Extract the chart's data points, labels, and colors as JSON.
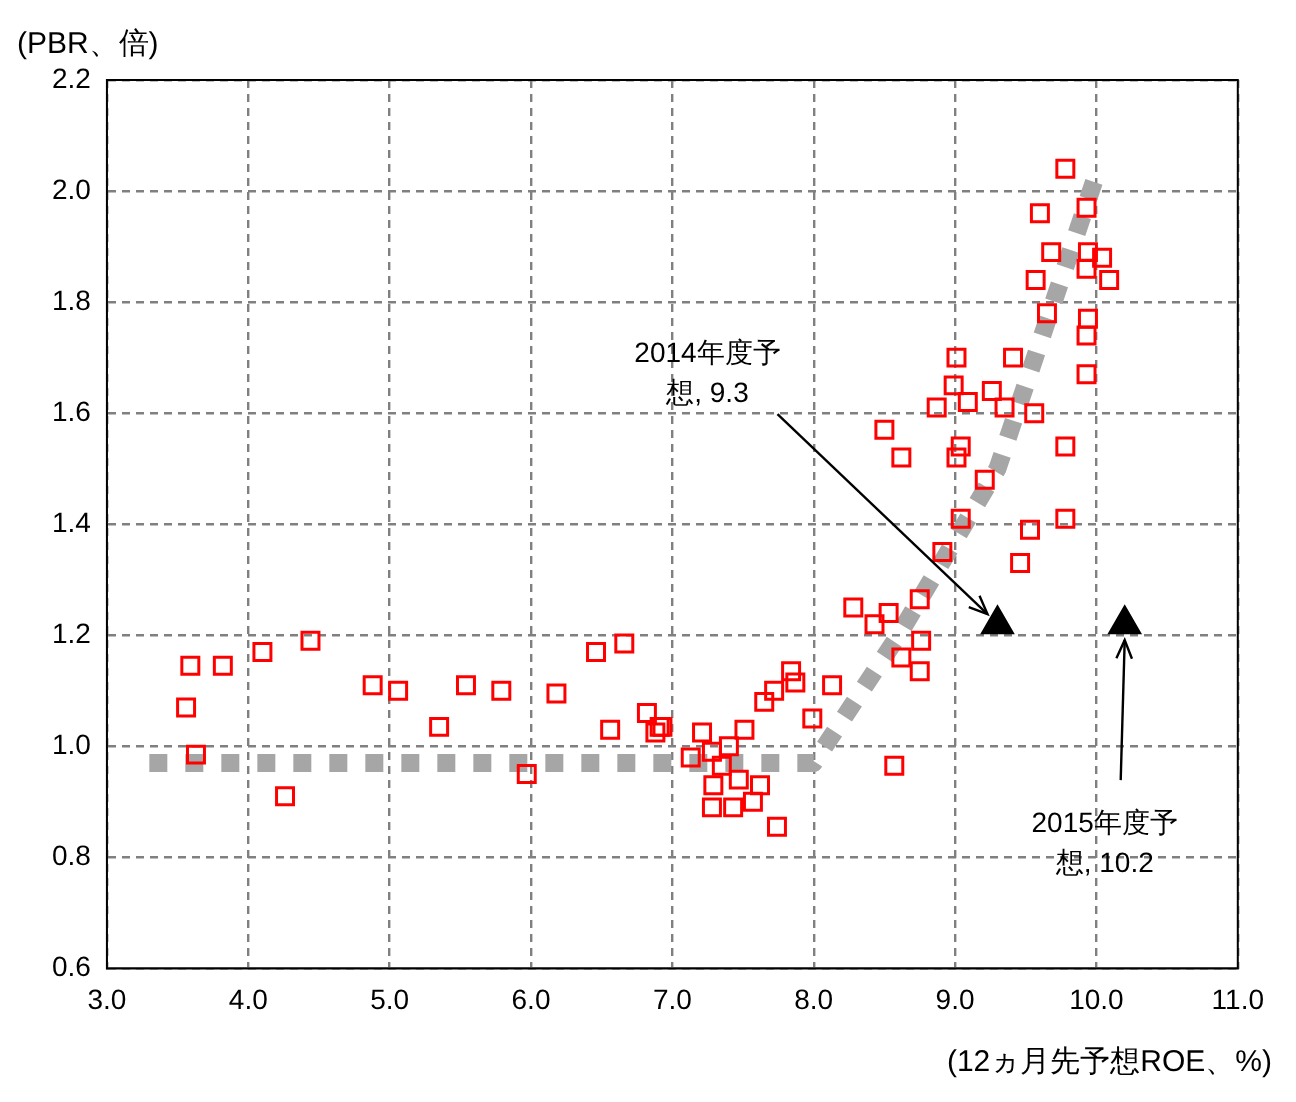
{
  "chart_data": {
    "type": "scatter",
    "xlabel": "(12ヵ月先予想ROE、%)",
    "ylabel": "(PBR、倍)",
    "xlim": [
      3,
      11
    ],
    "xticks": [
      {
        "value": 3,
        "label": "3.0"
      },
      {
        "value": 4,
        "label": "4.0"
      },
      {
        "value": 5,
        "label": "5.0"
      },
      {
        "value": 6,
        "label": "6.0"
      },
      {
        "value": 7,
        "label": "7.0"
      },
      {
        "value": 8,
        "label": "8.0"
      },
      {
        "value": 9,
        "label": "9.0"
      },
      {
        "value": 10,
        "label": "10.0"
      },
      {
        "value": 11,
        "label": "11.0"
      }
    ],
    "ylim": [
      0.6,
      2.2
    ],
    "yticks": [
      {
        "value": 0.6,
        "label": "0.6"
      },
      {
        "value": 0.8,
        "label": "0.8"
      },
      {
        "value": 1,
        "label": "1.0"
      },
      {
        "value": 1.2,
        "label": "1.2"
      },
      {
        "value": 1.4,
        "label": "1.4"
      },
      {
        "value": 1.6,
        "label": "1.6"
      },
      {
        "value": 1.8,
        "label": "1.8"
      },
      {
        "value": 2,
        "label": "2.0"
      },
      {
        "value": 2.2,
        "label": "2.2"
      }
    ],
    "grid": true,
    "legend": false,
    "series": [
      {
        "type": "line",
        "color": "#a6a6a6",
        "marker": "none",
        "line_style": "dotted",
        "x": [
          3.3,
          8.0,
          8.6,
          9.3,
          10.0
        ],
        "values": [
          0.97,
          0.97,
          1.2,
          1.5,
          2.03
        ]
      },
      {
        "color": "#ff0000",
        "marker": "square",
        "x": [
          3.59,
          3.82,
          3.56,
          3.63,
          4.1,
          4.44,
          4.26,
          4.88,
          5.06,
          5.35,
          5.54,
          5.79,
          5.97,
          6.18,
          6.46,
          6.66,
          6.56,
          6.82,
          6.91,
          6.88,
          6.93,
          7.21,
          7.28,
          7.13,
          7.4,
          7.29,
          7.28,
          7.43,
          7.57,
          7.74,
          7.47,
          7.62,
          7.51,
          7.65,
          7.72,
          7.87,
          7.84,
          8.13,
          7.99,
          8.57,
          8.28,
          8.53,
          8.75,
          8.43,
          8.76,
          8.75,
          8.62,
          7.35,
          9.78,
          9.6,
          9.93,
          9.68,
          9.94,
          10.04,
          9.57,
          9.93,
          10.09,
          9.65,
          9.94,
          9.93,
          9.93,
          9.01,
          9.41,
          8.99,
          8.87,
          9.09,
          9.26,
          9.35,
          9.56,
          8.5,
          8.62,
          9.04,
          9.21,
          9.01,
          9.78,
          9.04,
          9.53,
          9.78,
          9.46,
          8.91
        ],
        "values": [
          1.145,
          1.145,
          1.07,
          0.985,
          1.17,
          1.19,
          0.91,
          1.11,
          1.1,
          1.035,
          1.11,
          1.1,
          0.95,
          1.095,
          1.17,
          1.185,
          1.03,
          1.06,
          1.035,
          1.025,
          1.035,
          1.025,
          0.99,
          0.98,
          1.0,
          0.93,
          0.89,
          0.89,
          0.9,
          0.855,
          0.94,
          0.93,
          1.03,
          1.08,
          1.1,
          1.115,
          1.135,
          1.11,
          1.05,
          0.965,
          1.25,
          1.24,
          1.265,
          1.22,
          1.19,
          1.135,
          1.16,
          0.965,
          2.04,
          1.96,
          1.97,
          1.89,
          1.89,
          1.88,
          1.84,
          1.86,
          1.84,
          1.78,
          1.77,
          1.74,
          1.67,
          1.7,
          1.7,
          1.65,
          1.61,
          1.62,
          1.64,
          1.61,
          1.6,
          1.57,
          1.52,
          1.54,
          1.48,
          1.52,
          1.54,
          1.41,
          1.39,
          1.41,
          1.33,
          1.35
        ]
      },
      {
        "color": "#000000",
        "marker": "triangle",
        "x": [
          9.3,
          10.2
        ],
        "values": [
          1.22,
          1.22
        ]
      }
    ],
    "annotations": [
      {
        "text": "2014年度予想, 9.3",
        "x": 9.3,
        "y": 1.22
      },
      {
        "text": "2015年度予想, 10.2",
        "x": 10.2,
        "y": 1.22
      }
    ]
  }
}
